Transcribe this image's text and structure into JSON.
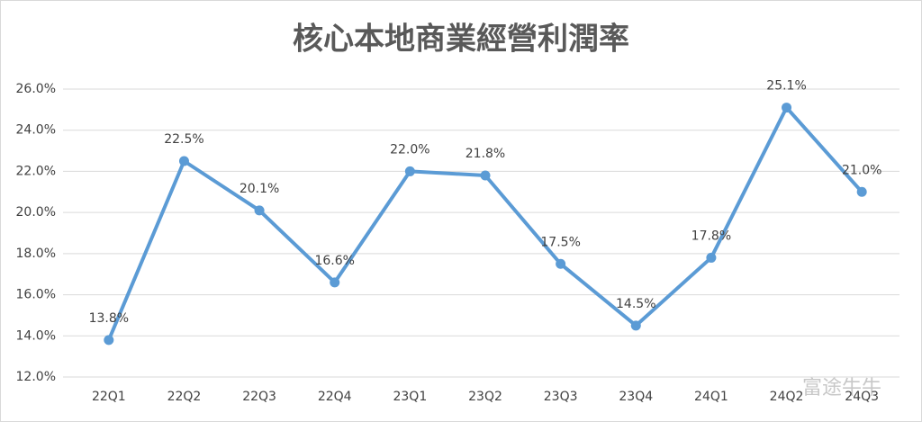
{
  "chart_data": {
    "type": "line",
    "title": "核心本地商業經營利潤率",
    "categories": [
      "22Q1",
      "22Q2",
      "22Q3",
      "22Q4",
      "23Q1",
      "23Q2",
      "23Q3",
      "23Q4",
      "24Q1",
      "24Q2",
      "24Q3"
    ],
    "series": [
      {
        "color": "#5b9bd5",
        "values": [
          13.8,
          22.5,
          20.1,
          16.6,
          22.0,
          21.8,
          17.5,
          14.5,
          17.8,
          25.1,
          21.0
        ],
        "value_labels": [
          "13.8%",
          "22.5%",
          "20.1%",
          "16.6%",
          "22.0%",
          "21.8%",
          "17.5%",
          "14.5%",
          "17.8%",
          "25.1%",
          "21.0%"
        ]
      }
    ],
    "ylim": [
      12,
      26
    ],
    "yticks": [
      {
        "value": 12,
        "label": "12.0%"
      },
      {
        "value": 14,
        "label": "14.0%"
      },
      {
        "value": 16,
        "label": "16.0%"
      },
      {
        "value": 18,
        "label": "18.0%"
      },
      {
        "value": 20,
        "label": "20.0%"
      },
      {
        "value": 22,
        "label": "22.0%"
      },
      {
        "value": 24,
        "label": "24.0%"
      },
      {
        "value": 26,
        "label": "26.0%"
      }
    ],
    "grid": true,
    "watermark": "富途牛牛"
  }
}
